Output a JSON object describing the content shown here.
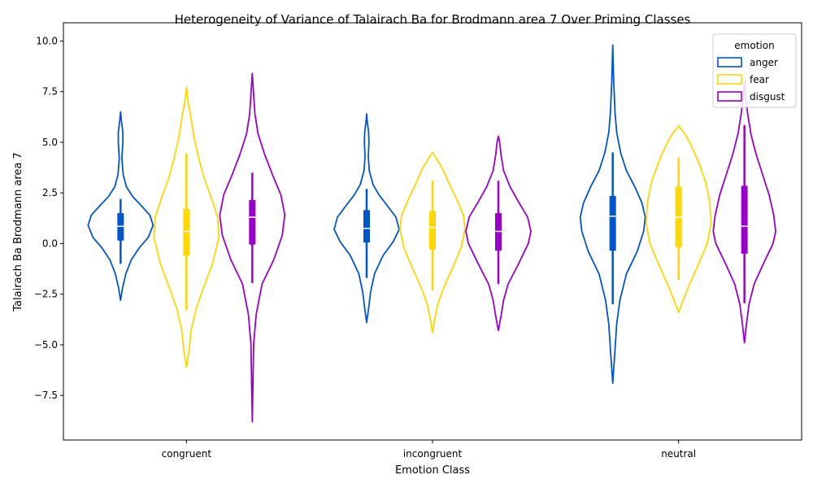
{
  "chart_data": {
    "type": "violin",
    "title": "Heterogeneity of Variance of Talairach Ba for Brodmann area 7 Over Priming Classes",
    "xlabel": "Emotion Class",
    "ylabel": "Talairach Ba Brodmann area 7",
    "categories": [
      "congruent",
      "incongruent",
      "neutral"
    ],
    "ylim": [
      -9.7,
      10.9
    ],
    "yticks": [
      -7.5,
      -5.0,
      -2.5,
      0.0,
      2.5,
      5.0,
      7.5,
      10.0
    ],
    "ytick_labels": [
      "−7.5",
      "−5.0",
      "−2.5",
      "0.0",
      "2.5",
      "5.0",
      "7.5",
      "10.0"
    ],
    "grid": false,
    "legend": {
      "title": "emotion",
      "position": "upper right"
    },
    "series": [
      {
        "name": "anger",
        "color": "#0055cc",
        "violins": [
          {
            "min": -2.8,
            "max": 6.5,
            "q1": 0.15,
            "median": 0.85,
            "q3": 1.5,
            "whisker_low": -1.0,
            "whisker_high": 2.2,
            "profile": [
              [
                -2.8,
                0.0
              ],
              [
                -2.2,
                0.06
              ],
              [
                -1.5,
                0.16
              ],
              [
                -0.8,
                0.33
              ],
              [
                -0.2,
                0.58
              ],
              [
                0.3,
                0.85
              ],
              [
                0.9,
                1.0
              ],
              [
                1.4,
                0.9
              ],
              [
                1.9,
                0.62
              ],
              [
                2.3,
                0.38
              ],
              [
                2.8,
                0.18
              ],
              [
                3.4,
                0.08
              ],
              [
                4.2,
                0.04
              ],
              [
                5.0,
                0.07
              ],
              [
                5.5,
                0.07
              ],
              [
                6.0,
                0.03
              ],
              [
                6.5,
                0.0
              ]
            ]
          },
          {
            "min": -3.9,
            "max": 6.4,
            "q1": 0.05,
            "median": 0.75,
            "q3": 1.65,
            "whisker_low": -1.7,
            "whisker_high": 2.7,
            "profile": [
              [
                -3.9,
                0.0
              ],
              [
                -3.2,
                0.06
              ],
              [
                -2.4,
                0.12
              ],
              [
                -1.5,
                0.24
              ],
              [
                -0.6,
                0.5
              ],
              [
                0.1,
                0.82
              ],
              [
                0.7,
                1.0
              ],
              [
                1.3,
                0.9
              ],
              [
                1.9,
                0.62
              ],
              [
                2.4,
                0.38
              ],
              [
                2.9,
                0.2
              ],
              [
                3.6,
                0.08
              ],
              [
                4.3,
                0.05
              ],
              [
                5.0,
                0.07
              ],
              [
                5.5,
                0.06
              ],
              [
                6.0,
                0.02
              ],
              [
                6.4,
                0.0
              ]
            ]
          },
          {
            "min": -6.9,
            "max": 9.8,
            "q1": -0.35,
            "median": 1.35,
            "q3": 2.35,
            "whisker_low": -3.0,
            "whisker_high": 4.5,
            "profile": [
              [
                -6.9,
                0.0
              ],
              [
                -5.5,
                0.06
              ],
              [
                -4.0,
                0.12
              ],
              [
                -2.8,
                0.22
              ],
              [
                -1.5,
                0.42
              ],
              [
                -0.4,
                0.75
              ],
              [
                0.6,
                0.95
              ],
              [
                1.3,
                1.0
              ],
              [
                2.0,
                0.9
              ],
              [
                2.8,
                0.68
              ],
              [
                3.6,
                0.42
              ],
              [
                4.5,
                0.24
              ],
              [
                5.5,
                0.12
              ],
              [
                6.5,
                0.07
              ],
              [
                8.0,
                0.03
              ],
              [
                9.8,
                0.0
              ]
            ]
          }
        ]
      },
      {
        "name": "fear",
        "color": "#ffd700",
        "violins": [
          {
            "min": -6.1,
            "max": 7.7,
            "q1": -0.6,
            "median": 0.6,
            "q3": 1.7,
            "whisker_low": -3.3,
            "whisker_high": 4.45,
            "profile": [
              [
                -6.1,
                0.0
              ],
              [
                -5.3,
                0.08
              ],
              [
                -4.3,
                0.14
              ],
              [
                -3.2,
                0.3
              ],
              [
                -2.2,
                0.52
              ],
              [
                -1.0,
                0.8
              ],
              [
                0.3,
                1.0
              ],
              [
                1.3,
                0.96
              ],
              [
                2.2,
                0.78
              ],
              [
                3.2,
                0.55
              ],
              [
                4.2,
                0.38
              ],
              [
                5.2,
                0.24
              ],
              [
                6.2,
                0.14
              ],
              [
                7.0,
                0.05
              ],
              [
                7.7,
                0.0
              ]
            ]
          },
          {
            "min": -4.4,
            "max": 4.5,
            "q1": -0.3,
            "median": 0.8,
            "q3": 1.6,
            "whisker_low": -2.3,
            "whisker_high": 3.1,
            "profile": [
              [
                -4.4,
                0.0
              ],
              [
                -3.8,
                0.06
              ],
              [
                -3.0,
                0.16
              ],
              [
                -2.2,
                0.34
              ],
              [
                -1.2,
                0.62
              ],
              [
                -0.2,
                0.88
              ],
              [
                0.7,
                1.0
              ],
              [
                1.4,
                0.95
              ],
              [
                2.2,
                0.74
              ],
              [
                3.0,
                0.5
              ],
              [
                3.6,
                0.34
              ],
              [
                4.1,
                0.16
              ],
              [
                4.5,
                0.0
              ]
            ]
          },
          {
            "min": -3.4,
            "max": 5.8,
            "q1": -0.2,
            "median": 1.3,
            "q3": 2.8,
            "whisker_low": -1.8,
            "whisker_high": 4.25,
            "profile": [
              [
                -3.4,
                0.0
              ],
              [
                -2.8,
                0.14
              ],
              [
                -2.0,
                0.34
              ],
              [
                -1.0,
                0.62
              ],
              [
                0.0,
                0.88
              ],
              [
                1.0,
                1.0
              ],
              [
                2.0,
                0.96
              ],
              [
                3.0,
                0.84
              ],
              [
                4.0,
                0.62
              ],
              [
                4.8,
                0.4
              ],
              [
                5.4,
                0.2
              ],
              [
                5.8,
                0.0
              ]
            ]
          }
        ]
      },
      {
        "name": "disgust",
        "color": "#9900cc",
        "violins": [
          {
            "min": -8.8,
            "max": 8.4,
            "q1": -0.05,
            "median": 1.3,
            "q3": 2.15,
            "whisker_low": -1.95,
            "whisker_high": 3.5,
            "profile": [
              [
                -8.8,
                0.0
              ],
              [
                -7.0,
                0.02
              ],
              [
                -5.0,
                0.04
              ],
              [
                -3.5,
                0.12
              ],
              [
                -2.0,
                0.3
              ],
              [
                -0.8,
                0.66
              ],
              [
                0.4,
                0.92
              ],
              [
                1.4,
                1.0
              ],
              [
                2.4,
                0.88
              ],
              [
                3.4,
                0.62
              ],
              [
                4.4,
                0.38
              ],
              [
                5.4,
                0.18
              ],
              [
                6.4,
                0.08
              ],
              [
                7.4,
                0.04
              ],
              [
                8.4,
                0.0
              ]
            ]
          },
          {
            "min": -4.3,
            "max": 5.3,
            "q1": -0.35,
            "median": 0.6,
            "q3": 1.5,
            "whisker_low": -2.0,
            "whisker_high": 3.1,
            "profile": [
              [
                -4.3,
                0.0
              ],
              [
                -3.6,
                0.08
              ],
              [
                -2.8,
                0.16
              ],
              [
                -2.0,
                0.3
              ],
              [
                -1.0,
                0.62
              ],
              [
                0.0,
                0.92
              ],
              [
                0.6,
                1.0
              ],
              [
                1.3,
                0.9
              ],
              [
                2.0,
                0.64
              ],
              [
                2.8,
                0.36
              ],
              [
                3.6,
                0.16
              ],
              [
                4.4,
                0.08
              ],
              [
                5.0,
                0.04
              ],
              [
                5.3,
                0.0
              ]
            ]
          },
          {
            "min": -4.9,
            "max": 8.0,
            "q1": -0.5,
            "median": 0.85,
            "q3": 2.85,
            "whisker_low": -2.95,
            "whisker_high": 5.85,
            "profile": [
              [
                -4.9,
                0.0
              ],
              [
                -4.0,
                0.06
              ],
              [
                -3.0,
                0.14
              ],
              [
                -2.0,
                0.3
              ],
              [
                -1.0,
                0.58
              ],
              [
                0.0,
                0.88
              ],
              [
                0.6,
                0.96
              ],
              [
                1.4,
                0.9
              ],
              [
                2.4,
                0.76
              ],
              [
                3.4,
                0.56
              ],
              [
                4.4,
                0.36
              ],
              [
                5.4,
                0.2
              ],
              [
                6.4,
                0.1
              ],
              [
                7.2,
                0.04
              ],
              [
                8.0,
                0.0
              ]
            ]
          }
        ]
      }
    ]
  }
}
